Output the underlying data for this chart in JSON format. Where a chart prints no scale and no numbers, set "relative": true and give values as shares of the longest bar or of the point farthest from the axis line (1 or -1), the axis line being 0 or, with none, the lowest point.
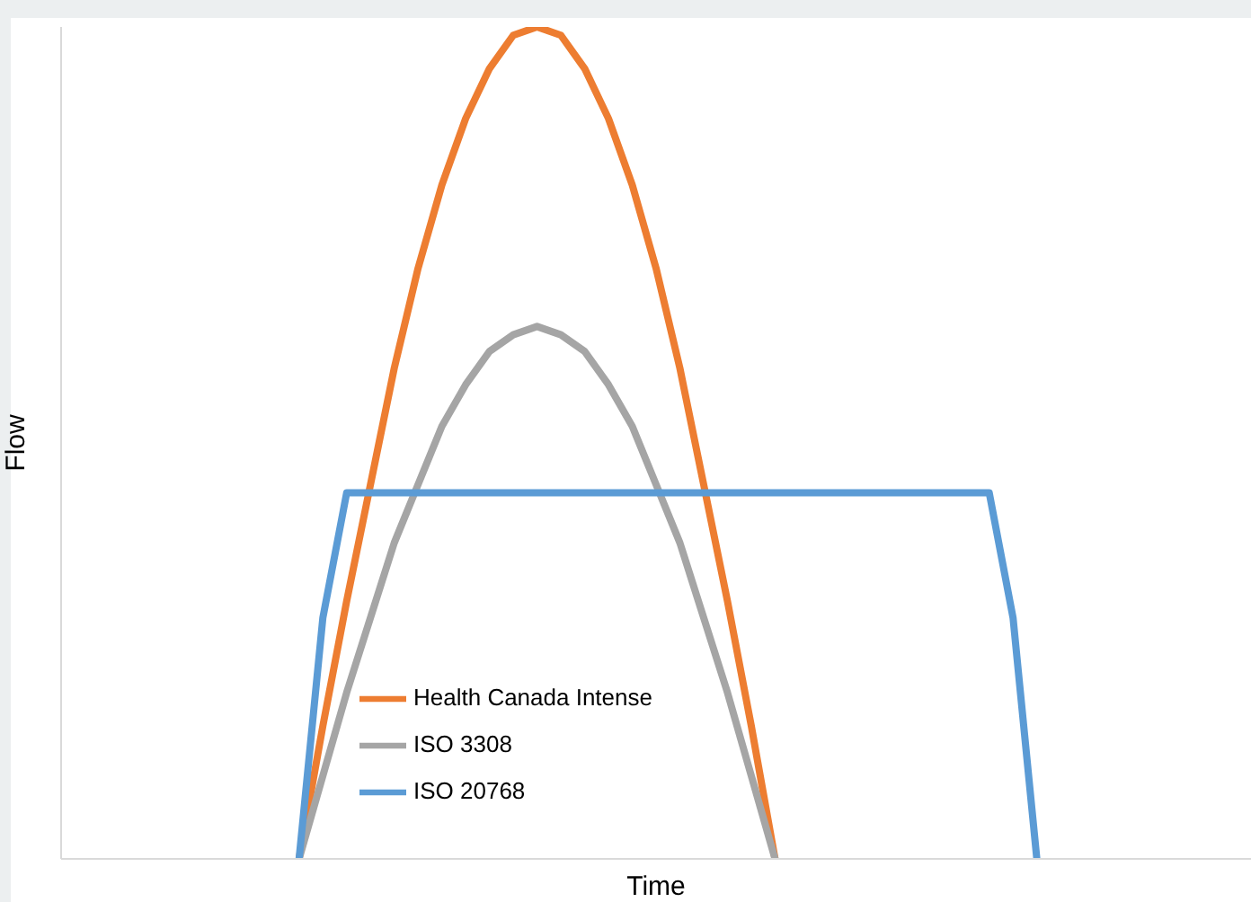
{
  "chart_data": {
    "type": "line",
    "xlabel": "Time",
    "ylabel": "Flow",
    "relative": true,
    "legend": "bottom left",
    "grid": false,
    "marker": "none",
    "line_style": "solid",
    "categories": [
      null,
      null,
      null,
      null,
      null,
      null,
      null,
      null,
      null,
      null,
      null,
      null,
      null,
      null,
      null,
      null,
      null,
      null,
      null,
      null,
      null,
      null,
      null,
      null,
      null,
      null,
      null,
      null,
      null,
      null,
      null,
      null,
      null,
      null,
      null,
      null,
      null,
      null,
      null,
      null,
      null,
      null,
      null,
      null,
      null,
      null,
      null,
      null,
      null,
      null,
      null
    ],
    "series": [
      {
        "name": "Health Canada Intense",
        "color": "#ed7d31",
        "values": [
          null,
          null,
          null,
          null,
          null,
          null,
          null,
          null,
          null,
          null,
          0,
          0.16,
          0.31,
          0.45,
          0.59,
          0.71,
          0.81,
          0.89,
          0.95,
          0.99,
          1,
          0.99,
          0.95,
          0.89,
          0.81,
          0.71,
          0.59,
          0.45,
          0.31,
          0.16,
          0,
          null,
          null,
          null,
          null,
          null,
          null,
          null,
          null,
          null,
          null,
          null,
          null,
          null,
          null,
          null,
          null,
          null,
          null,
          null,
          null
        ]
      },
      {
        "name": "ISO 3308",
        "color": "#a5a5a5",
        "values": [
          null,
          null,
          null,
          null,
          null,
          null,
          null,
          null,
          null,
          null,
          0,
          0.1,
          0.2,
          0.29,
          0.38,
          0.45,
          0.52,
          0.57,
          0.61,
          0.63,
          0.64,
          0.63,
          0.61,
          0.57,
          0.52,
          0.45,
          0.38,
          0.29,
          0.2,
          0.1,
          0,
          null,
          null,
          null,
          null,
          null,
          null,
          null,
          null,
          null,
          null,
          null,
          null,
          null,
          null,
          null,
          null,
          null,
          null,
          null,
          null
        ]
      },
      {
        "name": "ISO 20768",
        "color": "#5b9bd5",
        "values": [
          null,
          null,
          null,
          null,
          null,
          null,
          null,
          null,
          null,
          null,
          0,
          0.29,
          0.44,
          0.44,
          0.44,
          0.44,
          0.44,
          0.44,
          0.44,
          0.44,
          0.44,
          0.44,
          0.44,
          0.44,
          0.44,
          0.44,
          0.44,
          0.44,
          0.44,
          0.44,
          0.44,
          0.44,
          0.44,
          0.44,
          0.44,
          0.44,
          0.44,
          0.44,
          0.44,
          0.44,
          0.29,
          0,
          null,
          null,
          null,
          null,
          null,
          null,
          null,
          null,
          null
        ]
      }
    ]
  }
}
